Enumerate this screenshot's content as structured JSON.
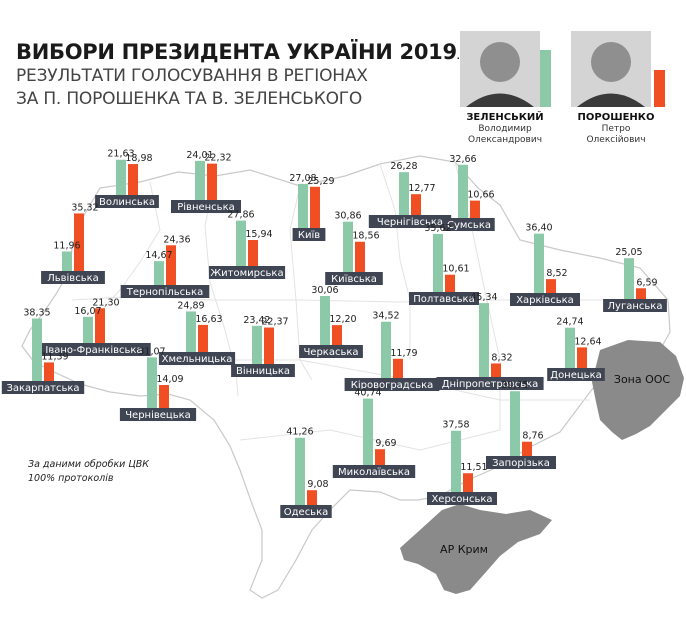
{
  "header": {
    "title": "ВИБОРИ ПРЕЗИДЕНТА УКРАЇНИ 2019",
    "subtitle_line1": "РЕЗУЛЬТАТИ ГОЛОСУВАННЯ В РЕГІОНАХ",
    "subtitle_line2": "ЗА П. ПОРОШЕНКА ТА В. ЗЕЛЕНСЬКОГО"
  },
  "legend": {
    "zelensky": {
      "surname": "ЗЕЛЕНСЬКИЙ",
      "name": "Володимир",
      "patronymic": "Олександрович",
      "color": "#8cc9a8"
    },
    "poroshenko": {
      "surname": "ПОРОШЕНКО",
      "name": "Петро",
      "patronymic": "Олексійович",
      "color": "#f04e23"
    }
  },
  "footnote": {
    "line1": "За даними обробки ЦВК",
    "line2": "100% протоколів"
  },
  "map_labels": {
    "ato": "Зона ООС",
    "crimea": "АР Крим"
  },
  "chart_data": {
    "type": "bar",
    "series_names": [
      "ЗЕЛЕНСЬКИЙ",
      "ПОРОШЕНКО"
    ],
    "regions": [
      {
        "name": "Волинська",
        "zelensky": 21.63,
        "poroshenko": 18.98
      },
      {
        "name": "Рівненська",
        "zelensky": 24.01,
        "poroshenko": 22.32
      },
      {
        "name": "Київ",
        "zelensky": 27.08,
        "poroshenko": 25.29
      },
      {
        "name": "Чернігівська",
        "zelensky": 26.28,
        "poroshenko": 12.77
      },
      {
        "name": "Сумська",
        "zelensky": 32.66,
        "poroshenko": 10.66
      },
      {
        "name": "Львівська",
        "zelensky": 11.96,
        "poroshenko": 35.32
      },
      {
        "name": "Тернопільська",
        "zelensky": 14.67,
        "poroshenko": 24.36
      },
      {
        "name": "Житомирська",
        "zelensky": 27.86,
        "poroshenko": 15.94
      },
      {
        "name": "Київська",
        "zelensky": 30.86,
        "poroshenko": 18.56
      },
      {
        "name": "Полтавська",
        "zelensky": 35.62,
        "poroshenko": 10.61
      },
      {
        "name": "Харківська",
        "zelensky": 36.4,
        "poroshenko": 8.52
      },
      {
        "name": "Луганська",
        "zelensky": 25.05,
        "poroshenko": 6.59
      },
      {
        "name": "Івано-Франківська",
        "zelensky": 16.07,
        "poroshenko": 21.3
      },
      {
        "name": "Хмельницька",
        "zelensky": 24.89,
        "poroshenko": 16.63
      },
      {
        "name": "Вінницька",
        "zelensky": 23.42,
        "poroshenko": 22.37
      },
      {
        "name": "Черкаська",
        "zelensky": 30.06,
        "poroshenko": 12.2
      },
      {
        "name": "Кіровоградська",
        "zelensky": 34.52,
        "poroshenko": 11.79
      },
      {
        "name": "Дніпропетровська",
        "zelensky": 45.34,
        "poroshenko": 8.32
      },
      {
        "name": "Донецька",
        "zelensky": 24.74,
        "poroshenko": 12.64
      },
      {
        "name": "Закарпатська",
        "zelensky": 38.35,
        "poroshenko": 11.39
      },
      {
        "name": "Чернівецька",
        "zelensky": 31.07,
        "poroshenko": 14.09
      },
      {
        "name": "Миколаївська",
        "zelensky": 40.74,
        "poroshenko": 9.69
      },
      {
        "name": "Запорізька",
        "zelensky": 39.75,
        "poroshenko": 8.76
      },
      {
        "name": "Одеська",
        "zelensky": 41.26,
        "poroshenko": 9.08
      },
      {
        "name": "Херсонська",
        "zelensky": 37.58,
        "poroshenko": 11.51
      }
    ]
  }
}
